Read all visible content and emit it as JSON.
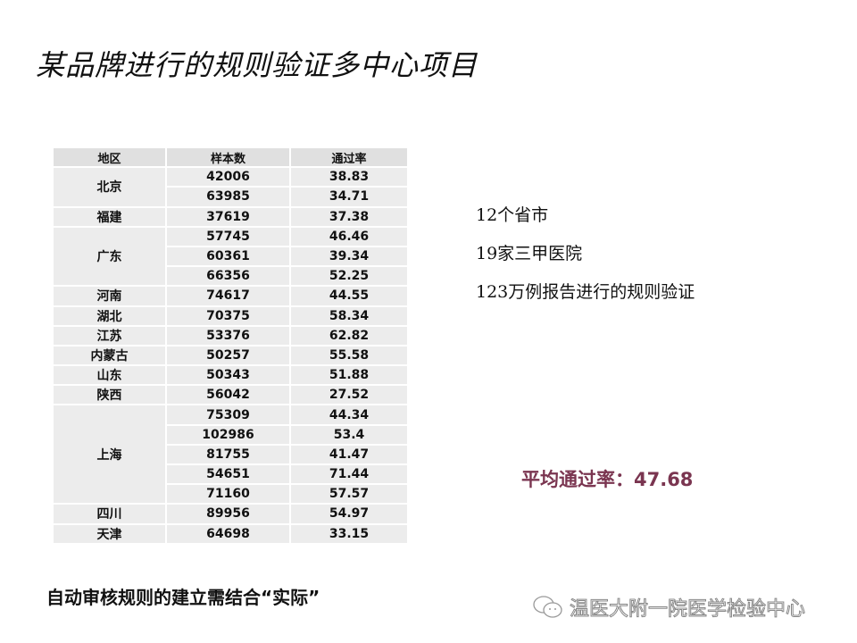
{
  "title": "某品牌进行的规则验证多中心项目",
  "table": {
    "headers": [
      "地区",
      "样本数",
      "通过率"
    ],
    "groups": [
      {
        "region": "北京",
        "rows": [
          [
            "42006",
            "38.83"
          ],
          [
            "63985",
            "34.71"
          ]
        ]
      },
      {
        "region": "福建",
        "rows": [
          [
            "37619",
            "37.38"
          ]
        ]
      },
      {
        "region": "广东",
        "rows": [
          [
            "57745",
            "46.46"
          ],
          [
            "60361",
            "39.34"
          ],
          [
            "66356",
            "52.25"
          ]
        ]
      },
      {
        "region": "河南",
        "rows": [
          [
            "74617",
            "44.55"
          ]
        ]
      },
      {
        "region": "湖北",
        "rows": [
          [
            "70375",
            "58.34"
          ]
        ]
      },
      {
        "region": "江苏",
        "rows": [
          [
            "53376",
            "62.82"
          ]
        ]
      },
      {
        "region": "内蒙古",
        "rows": [
          [
            "50257",
            "55.58"
          ]
        ]
      },
      {
        "region": "山东",
        "rows": [
          [
            "50343",
            "51.88"
          ]
        ]
      },
      {
        "region": "陕西",
        "rows": [
          [
            "56042",
            "27.52"
          ]
        ]
      },
      {
        "region": "上海",
        "rows": [
          [
            "75309",
            "44.34"
          ],
          [
            "102986",
            "53.4"
          ],
          [
            "81755",
            "41.47"
          ],
          [
            "54651",
            "71.44"
          ],
          [
            "71160",
            "57.57"
          ]
        ]
      },
      {
        "region": "四川",
        "rows": [
          [
            "89956",
            "54.97"
          ]
        ]
      },
      {
        "region": "天津",
        "rows": [
          [
            "64698",
            "33.15"
          ]
        ]
      }
    ]
  },
  "facts": [
    "12个省市",
    "19家三甲医院",
    "123万例报告进行的规则验证"
  ],
  "average": "平均通过率：47.68",
  "average_color": "#7a3550",
  "bottom_note": "自动审核规则的建立需结合“实际”",
  "watermark": {
    "icon": "wechat-icon",
    "text": "温医大附一院医学检验中心"
  }
}
